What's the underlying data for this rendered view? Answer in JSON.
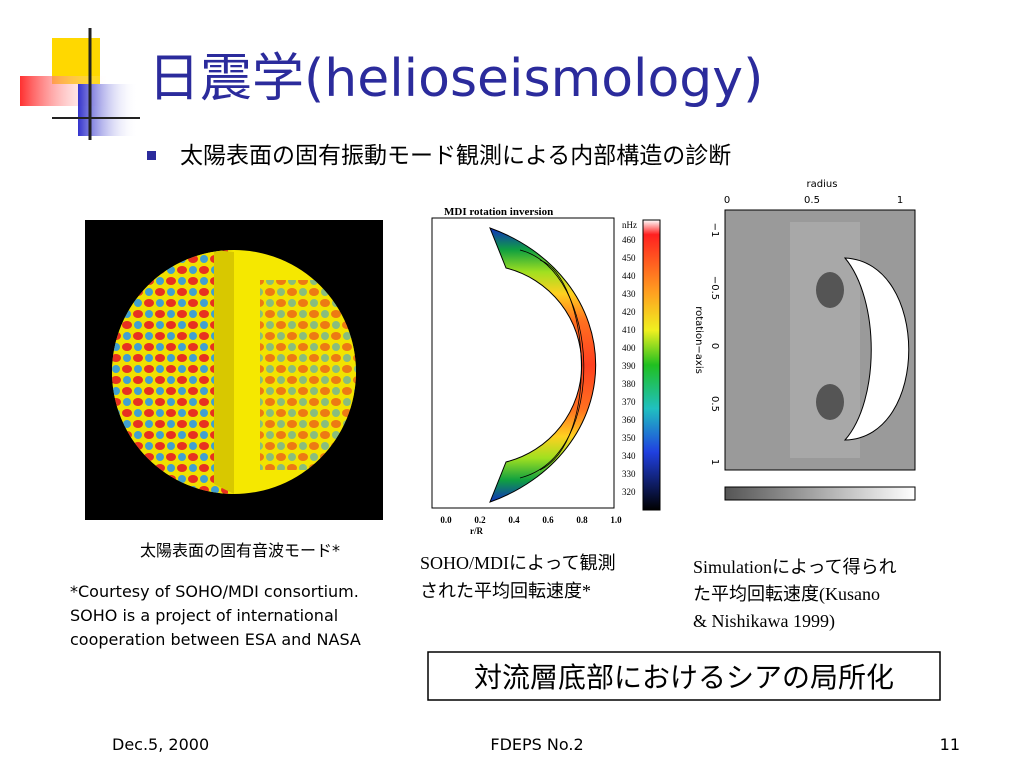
{
  "title": "日震学(helioseismology)",
  "bullet": "太陽表面の固有振動モード観測による内部構造の診断",
  "figure_left": {
    "caption": "太陽表面の固有音波モード*",
    "credit": [
      "*Courtesy of SOHO/MDI consortium.",
      "SOHO is a project of international",
      "cooperation between ESA and NASA"
    ]
  },
  "figure_middle": {
    "plot_title": "MDI rotation inversion",
    "unit": "nHz",
    "colorbar_ticks": [
      460,
      450,
      440,
      430,
      420,
      410,
      400,
      390,
      380,
      370,
      360,
      350,
      340,
      330,
      320
    ],
    "x_ticks": [
      "0.0",
      "0.2",
      "0.4",
      "0.6",
      "0.8",
      "1.0"
    ],
    "x_label": "r/R",
    "caption": [
      "SOHO/MDIによって観測",
      "された平均回転速度*"
    ]
  },
  "figure_right": {
    "top_label": "radius",
    "top_ticks": [
      "0",
      "0.5",
      "1"
    ],
    "side_label": "rotation−axis",
    "side_ticks": [
      "−1",
      "−0.5",
      "0",
      "0.5",
      "1"
    ],
    "caption": [
      "Simulationによって得られ",
      "た平均回転速度(Kusano",
      "& Nishikawa 1999)"
    ]
  },
  "conclusion": "対流層底部におけるシアの局所化",
  "footer": {
    "date": "Dec.5, 2000",
    "center": "FDEPS No.2",
    "page": "11"
  }
}
